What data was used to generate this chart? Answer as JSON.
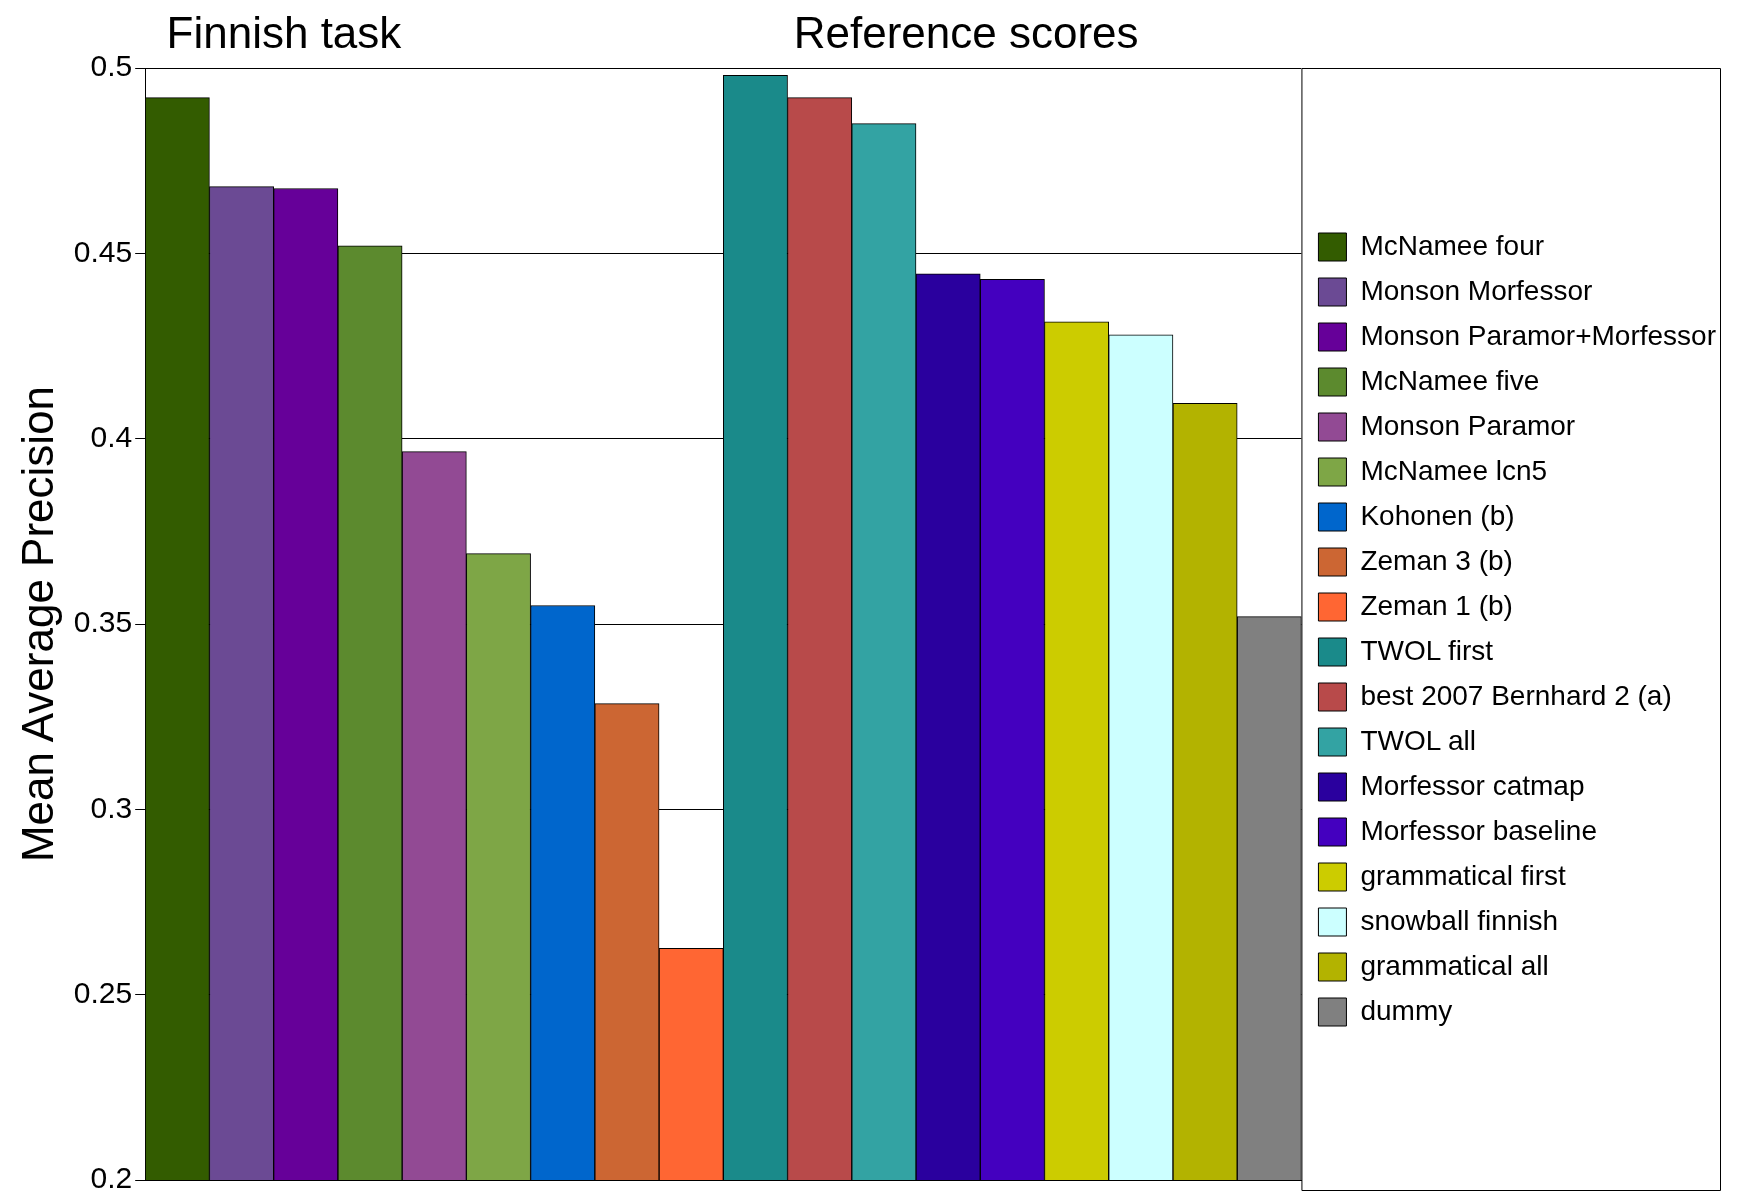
{
  "chart_data": {
    "type": "bar",
    "ylabel": "Mean Average Precision",
    "annotations": [
      "Finnish task",
      "Reference scores"
    ],
    "categories": [
      null,
      null,
      null,
      null,
      null,
      null,
      null,
      null,
      null,
      null,
      null,
      null,
      null,
      null,
      null,
      null,
      null,
      null
    ],
    "series": [
      {
        "name": "McNamee four",
        "color": "#335c00",
        "values": [
          0.492,
          null,
          null,
          null,
          null,
          null,
          null,
          null,
          null,
          null,
          null,
          null,
          null,
          null,
          null,
          null,
          null,
          null
        ]
      },
      {
        "name": "Monson Morfessor",
        "color": "#6b4a94",
        "values": [
          null,
          0.468,
          null,
          null,
          null,
          null,
          null,
          null,
          null,
          null,
          null,
          null,
          null,
          null,
          null,
          null,
          null,
          null
        ]
      },
      {
        "name": "Monson Paramor+Morfessor",
        "color": "#660099",
        "values": [
          null,
          null,
          0.4675,
          null,
          null,
          null,
          null,
          null,
          null,
          null,
          null,
          null,
          null,
          null,
          null,
          null,
          null,
          null
        ]
      },
      {
        "name": "McNamee five",
        "color": "#5c8a2e",
        "values": [
          null,
          null,
          null,
          0.452,
          null,
          null,
          null,
          null,
          null,
          null,
          null,
          null,
          null,
          null,
          null,
          null,
          null,
          null
        ]
      },
      {
        "name": "Monson Paramor",
        "color": "#924a94",
        "values": [
          null,
          null,
          null,
          null,
          0.3965,
          null,
          null,
          null,
          null,
          null,
          null,
          null,
          null,
          null,
          null,
          null,
          null,
          null
        ]
      },
      {
        "name": "McNamee lcn5",
        "color": "#7ea646",
        "values": [
          null,
          null,
          null,
          null,
          null,
          0.369,
          null,
          null,
          null,
          null,
          null,
          null,
          null,
          null,
          null,
          null,
          null,
          null
        ]
      },
      {
        "name": "Kohonen (b)",
        "color": "#0066cc",
        "values": [
          null,
          null,
          null,
          null,
          null,
          null,
          0.355,
          null,
          null,
          null,
          null,
          null,
          null,
          null,
          null,
          null,
          null,
          null
        ]
      },
      {
        "name": "Zeman 3 (b)",
        "color": "#cc6633",
        "values": [
          null,
          null,
          null,
          null,
          null,
          null,
          null,
          0.3285,
          null,
          null,
          null,
          null,
          null,
          null,
          null,
          null,
          null,
          null
        ]
      },
      {
        "name": "Zeman 1 (b)",
        "color": "#ff6633",
        "values": [
          null,
          null,
          null,
          null,
          null,
          null,
          null,
          null,
          0.2625,
          null,
          null,
          null,
          null,
          null,
          null,
          null,
          null,
          null
        ]
      },
      {
        "name": "TWOL first",
        "color": "#1a8a8a",
        "values": [
          null,
          null,
          null,
          null,
          null,
          null,
          null,
          null,
          null,
          0.498,
          null,
          null,
          null,
          null,
          null,
          null,
          null,
          null
        ]
      },
      {
        "name": "best 2007 Bernhard 2 (a)",
        "color": "#b84a4a",
        "values": [
          null,
          null,
          null,
          null,
          null,
          null,
          null,
          null,
          null,
          null,
          0.492,
          null,
          null,
          null,
          null,
          null,
          null,
          null
        ]
      },
      {
        "name": "TWOL all",
        "color": "#33a3a3",
        "values": [
          null,
          null,
          null,
          null,
          null,
          null,
          null,
          null,
          null,
          null,
          null,
          0.485,
          null,
          null,
          null,
          null,
          null,
          null
        ]
      },
      {
        "name": "Morfessor catmap",
        "color": "#2a009e",
        "values": [
          null,
          null,
          null,
          null,
          null,
          null,
          null,
          null,
          null,
          null,
          null,
          null,
          0.4445,
          null,
          null,
          null,
          null,
          null
        ]
      },
      {
        "name": "Morfessor baseline",
        "color": "#4400bf",
        "values": [
          null,
          null,
          null,
          null,
          null,
          null,
          null,
          null,
          null,
          null,
          null,
          null,
          null,
          0.443,
          null,
          null,
          null,
          null
        ]
      },
      {
        "name": "grammatical first",
        "color": "#cccc00",
        "values": [
          null,
          null,
          null,
          null,
          null,
          null,
          null,
          null,
          null,
          null,
          null,
          null,
          null,
          null,
          0.4315,
          null,
          null,
          null
        ]
      },
      {
        "name": "snowball finnish",
        "color": "#ccffff",
        "values": [
          null,
          null,
          null,
          null,
          null,
          null,
          null,
          null,
          null,
          null,
          null,
          null,
          null,
          null,
          null,
          0.428,
          null,
          null
        ]
      },
      {
        "name": "grammatical all",
        "color": "#b3b300",
        "values": [
          null,
          null,
          null,
          null,
          null,
          null,
          null,
          null,
          null,
          null,
          null,
          null,
          null,
          null,
          null,
          null,
          0.4095,
          null
        ]
      },
      {
        "name": "dummy",
        "color": "#808080",
        "values": [
          null,
          null,
          null,
          null,
          null,
          null,
          null,
          null,
          null,
          null,
          null,
          null,
          null,
          null,
          null,
          null,
          null,
          0.352
        ]
      }
    ],
    "ylim": [
      0.2,
      0.5
    ],
    "yticks": [
      0.2,
      0.25,
      0.3,
      0.35,
      0.4,
      0.45,
      0.5
    ],
    "grid": "y",
    "legend": "right",
    "tick_labels": "y"
  }
}
